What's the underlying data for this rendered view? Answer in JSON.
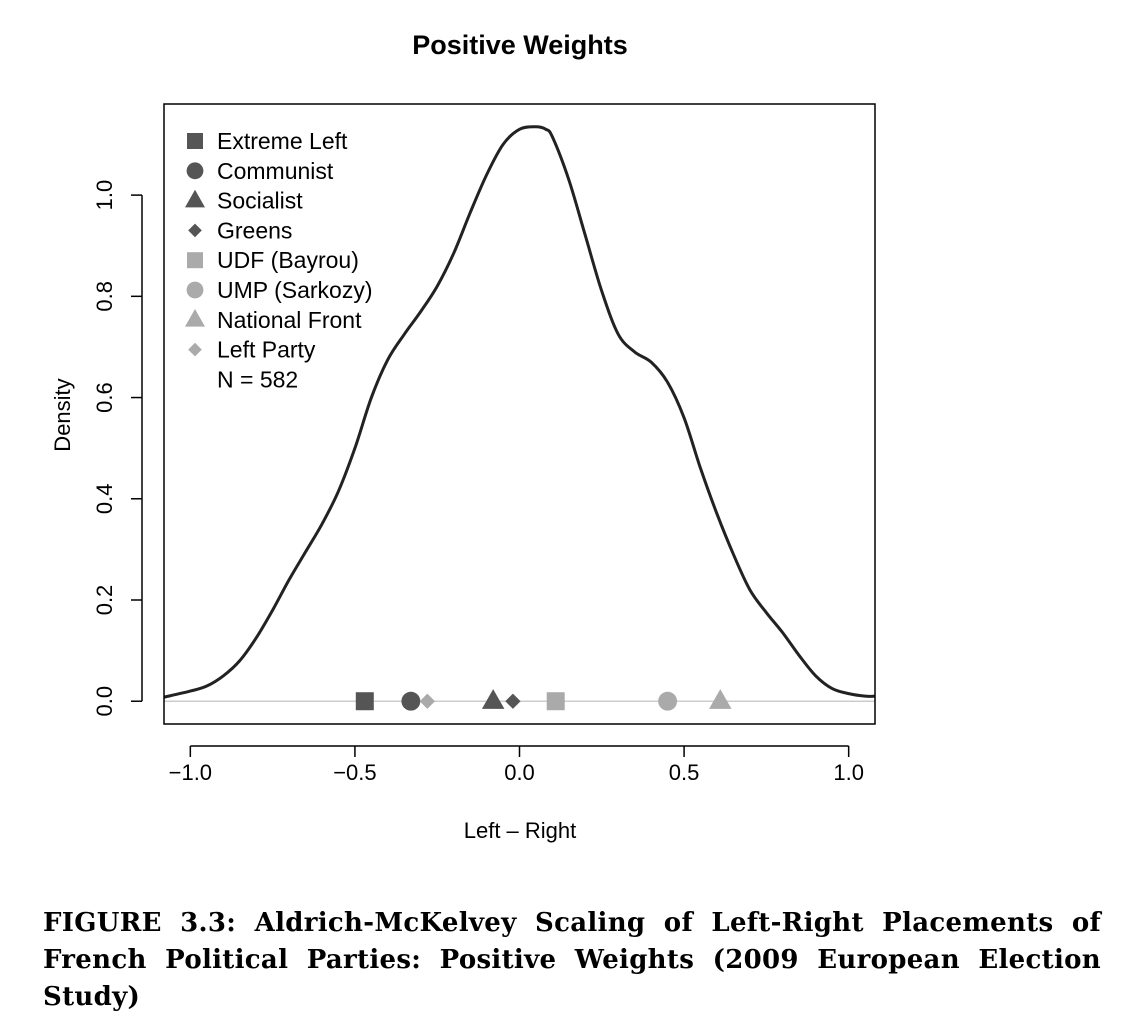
{
  "chart_data": {
    "type": "line",
    "title": "Positive Weights",
    "xlabel": "Left – Right",
    "ylabel": "Density",
    "xlim": [
      -1.08,
      1.08
    ],
    "ylim": [
      -0.045,
      1.18
    ],
    "xticks": [
      -1.0,
      -0.5,
      0.0,
      0.5,
      1.0
    ],
    "xtick_labels": [
      "−1.0",
      "−0.5",
      "0.0",
      "0.5",
      "1.0"
    ],
    "yticks": [
      0.0,
      0.2,
      0.4,
      0.6,
      0.8,
      1.0
    ],
    "ytick_labels": [
      "0.0",
      "0.2",
      "0.4",
      "0.6",
      "0.8",
      "1.0"
    ],
    "grid": false,
    "legend_position": "top-left",
    "density_curve": {
      "x": [
        -1.08,
        -1.0,
        -0.95,
        -0.9,
        -0.85,
        -0.8,
        -0.75,
        -0.7,
        -0.65,
        -0.6,
        -0.55,
        -0.5,
        -0.45,
        -0.4,
        -0.35,
        -0.3,
        -0.25,
        -0.2,
        -0.15,
        -0.1,
        -0.05,
        0.0,
        0.05,
        0.08,
        0.1,
        0.15,
        0.2,
        0.25,
        0.3,
        0.35,
        0.4,
        0.45,
        0.5,
        0.55,
        0.6,
        0.65,
        0.7,
        0.75,
        0.8,
        0.85,
        0.9,
        0.95,
        1.0,
        1.05,
        1.08
      ],
      "y": [
        0.008,
        0.02,
        0.03,
        0.05,
        0.08,
        0.125,
        0.18,
        0.24,
        0.295,
        0.35,
        0.415,
        0.5,
        0.6,
        0.675,
        0.725,
        0.77,
        0.82,
        0.885,
        0.965,
        1.04,
        1.1,
        1.13,
        1.135,
        1.13,
        1.115,
        1.03,
        0.92,
        0.81,
        0.725,
        0.69,
        0.67,
        0.63,
        0.56,
        0.46,
        0.37,
        0.29,
        0.22,
        0.175,
        0.135,
        0.09,
        0.05,
        0.025,
        0.015,
        0.01,
        0.01
      ]
    },
    "parties": [
      {
        "name": "Extreme Left",
        "x": -0.47,
        "shape": "square",
        "color": "#555555"
      },
      {
        "name": "Communist",
        "x": -0.33,
        "shape": "circle",
        "color": "#555555"
      },
      {
        "name": "Socialist",
        "x": -0.08,
        "shape": "triangle",
        "color": "#555555"
      },
      {
        "name": "Greens",
        "x": -0.02,
        "shape": "diamond",
        "color": "#555555"
      },
      {
        "name": "UDF (Bayrou)",
        "x": 0.11,
        "shape": "square",
        "color": "#aaaaaa"
      },
      {
        "name": "UMP (Sarkozy)",
        "x": 0.45,
        "shape": "circle",
        "color": "#aaaaaa"
      },
      {
        "name": "National Front",
        "x": 0.61,
        "shape": "triangle",
        "color": "#aaaaaa"
      },
      {
        "name": "Left Party",
        "x": -0.28,
        "shape": "diamond",
        "color": "#aaaaaa"
      }
    ],
    "sample_note": "N = 582"
  },
  "caption": "FIGURE 3.3: Aldrich-McKelvey Scaling of Left-Right Placements of French Political Parties: Positive Weights (2009 European Election Study)",
  "colors": {
    "curve": "#222222",
    "baseline": "#cccccc",
    "dark_marker": "#555555",
    "light_marker": "#aaaaaa"
  }
}
